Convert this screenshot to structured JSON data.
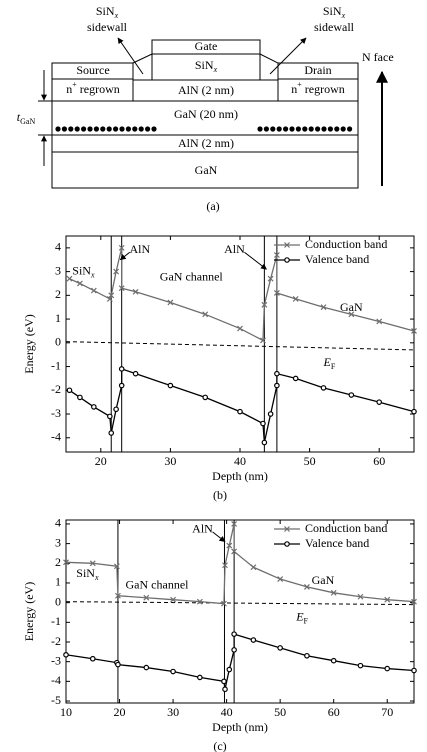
{
  "diagram": {
    "sidewall_left": [
      "SiN",
      "x",
      "sidewall"
    ],
    "sidewall_right": [
      "SiN",
      "x",
      "sidewall"
    ],
    "source": "Source",
    "source_layer": [
      "n",
      "+",
      " regrown"
    ],
    "gate": "Gate",
    "gate_dielectric": [
      "SiN",
      "x"
    ],
    "barrier": "AlN (2 nm)",
    "drain": "Drain",
    "drain_layer": [
      "n",
      "+",
      " regrown"
    ],
    "channel": "GaN (20 nm)",
    "back_barrier": "AlN (2 nm)",
    "substrate": "GaN",
    "thickness": [
      "t",
      "GaN"
    ],
    "direction": "N face",
    "caption": "(a)"
  },
  "chart_data": [
    {
      "type": "line",
      "caption": "(b)",
      "xlabel": "Depth (nm)",
      "ylabel": "Energy (eV)",
      "xlim": [
        15,
        65
      ],
      "xticks": [
        20,
        30,
        40,
        50,
        60
      ],
      "ylim": [
        -4.6,
        4.5
      ],
      "yticks": [
        -4,
        -3,
        -2,
        -1,
        0,
        1,
        2,
        3,
        4
      ],
      "x": [
        15.5,
        17,
        19,
        21.3,
        21.5,
        22.2,
        23,
        23,
        25,
        30,
        35,
        40,
        43.3,
        43.5,
        44.4,
        45.3,
        45.3,
        48,
        52,
        56,
        60,
        65
      ],
      "series": [
        {
          "name": "Conduction band",
          "color": "#6e6e6e",
          "marker": "x",
          "values": [
            2.7,
            2.5,
            2.2,
            1.85,
            2.0,
            3.0,
            4.0,
            2.3,
            2.15,
            1.7,
            1.2,
            0.6,
            0.1,
            1.6,
            2.7,
            3.7,
            2.1,
            1.85,
            1.5,
            1.2,
            0.9,
            0.5
          ]
        },
        {
          "name": "Valence band",
          "color": "#000000",
          "marker": "o",
          "values": [
            -2.0,
            -2.3,
            -2.7,
            -3.1,
            -3.8,
            -2.8,
            -1.8,
            -1.1,
            -1.3,
            -1.8,
            -2.3,
            -2.9,
            -3.4,
            -4.2,
            -3.0,
            -1.8,
            -1.3,
            -1.5,
            -1.9,
            -2.2,
            -2.5,
            -2.9
          ]
        }
      ],
      "fermi_level": {
        "label": [
          "E",
          "F"
        ],
        "x": [
          15,
          65
        ],
        "values": [
          0.05,
          -0.3
        ]
      },
      "interfaces": [
        21.5,
        23,
        43.5,
        45.3
      ],
      "annotations": [
        [
          "SiN",
          "x"
        ],
        "AlN",
        "GaN channel",
        "AlN",
        "GaN"
      ],
      "legend": "upper right"
    },
    {
      "type": "line",
      "caption": "(c)",
      "xlabel": "Depth (nm)",
      "ylabel": "Energy (eV)",
      "xlim": [
        10,
        75
      ],
      "xticks": [
        10,
        20,
        30,
        40,
        50,
        60,
        70
      ],
      "ylim": [
        -5.1,
        4.2
      ],
      "yticks": [
        -5,
        -4,
        -3,
        -2,
        -1,
        0,
        1,
        2,
        3,
        4
      ],
      "x": [
        10,
        15,
        19.5,
        19.7,
        25,
        30,
        35,
        39.5,
        39.7,
        40.5,
        41.4,
        41.4,
        45,
        50,
        55,
        60,
        65,
        70,
        75
      ],
      "series": [
        {
          "name": "Conduction band",
          "color": "#6e6e6e",
          "marker": "x",
          "values": [
            2.05,
            2.0,
            1.85,
            0.35,
            0.25,
            0.15,
            0.05,
            -0.05,
            1.9,
            2.9,
            4.0,
            2.6,
            1.8,
            1.2,
            0.8,
            0.5,
            0.3,
            0.15,
            0.05
          ]
        },
        {
          "name": "Valence band",
          "color": "#000000",
          "marker": "o",
          "values": [
            -2.65,
            -2.85,
            -3.05,
            -3.15,
            -3.3,
            -3.5,
            -3.8,
            -4.0,
            -4.4,
            -3.4,
            -2.4,
            -1.6,
            -1.9,
            -2.3,
            -2.7,
            -2.95,
            -3.2,
            -3.35,
            -3.45
          ]
        }
      ],
      "fermi_level": {
        "label": [
          "E",
          "F"
        ],
        "x": [
          10,
          75
        ],
        "values": [
          0.05,
          -0.1
        ]
      },
      "interfaces": [
        19.7,
        39.6,
        41.4
      ],
      "annotations": [
        [
          "SiN",
          "x"
        ],
        "GaN channel",
        "AlN",
        "GaN"
      ],
      "legend": "upper right"
    }
  ]
}
